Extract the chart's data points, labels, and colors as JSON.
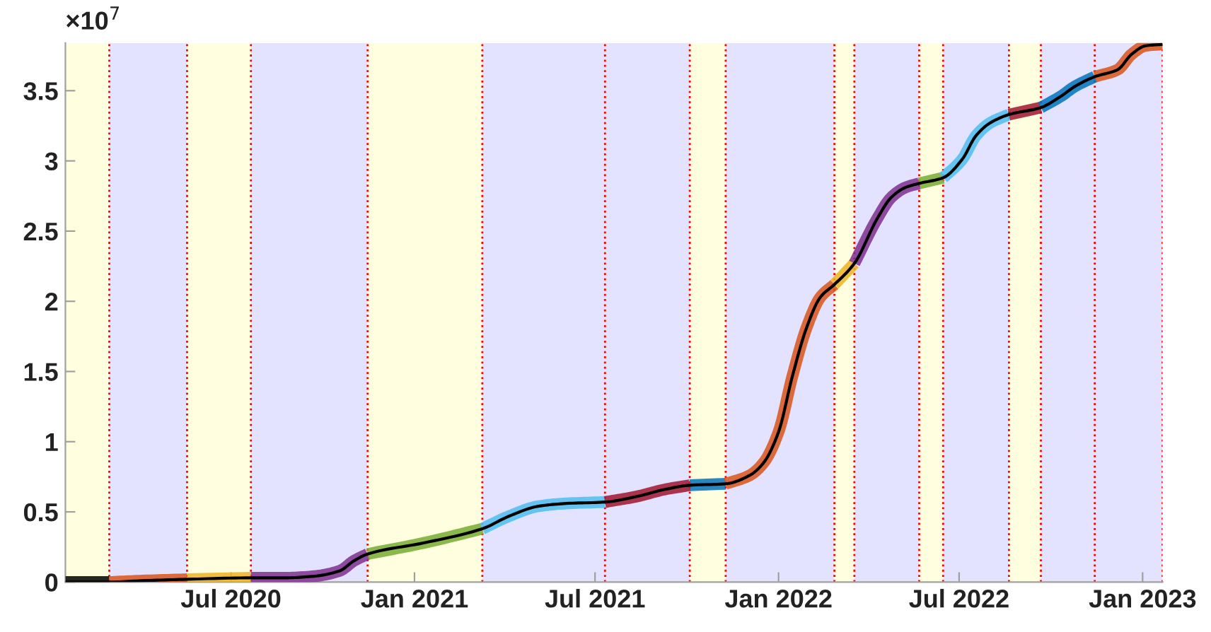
{
  "chart_data": {
    "type": "line",
    "xlim": [
      "2020-01-17",
      "2023-01-21"
    ],
    "ylim": [
      0,
      3.84
    ],
    "xticks": [
      {
        "value": "2020-07-01",
        "label": "Jul 2020"
      },
      {
        "value": "2021-01-01",
        "label": "Jan 2021"
      },
      {
        "value": "2021-07-01",
        "label": "Jul 2021"
      },
      {
        "value": "2022-01-01",
        "label": "Jan 2022"
      },
      {
        "value": "2022-07-01",
        "label": "Jul 2022"
      },
      {
        "value": "2023-01-01",
        "label": "Jan 2023"
      }
    ],
    "yticks": [
      0,
      0.5,
      1,
      1.5,
      2,
      2.5,
      3,
      3.5
    ],
    "annotations": [
      "×10$^{7}$"
    ],
    "grid": false,
    "series": [
      {
        "color": "#000000",
        "x": [
          "2020-01-17",
          "2020-03-01"
        ],
        "values": [
          0,
          0
        ]
      },
      {
        "color": "#d95319",
        "x": [
          "2020-03-01",
          "2020-04-03",
          "2020-05-18"
        ],
        "values": [
          0,
          0.01,
          0.02
        ]
      },
      {
        "color": "#edb120",
        "x": [
          "2020-05-18",
          "2020-07-21"
        ],
        "values": [
          0.02,
          0.03
        ]
      },
      {
        "color": "#7e2f8e",
        "x": [
          "2020-07-21",
          "2020-08-22",
          "2020-09-20",
          "2020-10-18",
          "2020-11-01",
          "2020-11-15"
        ],
        "values": [
          0.03,
          0.03,
          0.04,
          0.08,
          0.15,
          0.2
        ]
      },
      {
        "color": "#77ac30",
        "x": [
          "2020-11-15",
          "2021-01-11",
          "2021-03-10"
        ],
        "values": [
          0.2,
          0.28,
          0.38
        ]
      },
      {
        "color": "#4dbeee",
        "x": [
          "2021-03-10",
          "2021-04-06",
          "2021-05-05",
          "2021-06-02",
          "2021-07-11"
        ],
        "values": [
          0.38,
          0.47,
          0.54,
          0.56,
          0.57
        ]
      },
      {
        "color": "#a2142f",
        "x": [
          "2021-07-11",
          "2021-08-12",
          "2021-09-09",
          "2021-10-04"
        ],
        "values": [
          0.57,
          0.61,
          0.66,
          0.69
        ]
      },
      {
        "color": "#0072bd",
        "x": [
          "2021-10-04",
          "2021-11-09"
        ],
        "values": [
          0.69,
          0.7
        ]
      },
      {
        "color": "#d95319",
        "x": [
          "2021-11-09",
          "2021-12-03",
          "2021-12-17",
          "2022-01-01",
          "2022-01-15",
          "2022-01-29",
          "2022-02-12",
          "2022-02-26"
        ],
        "values": [
          0.7,
          0.76,
          0.85,
          1.07,
          1.47,
          1.81,
          2.03,
          2.12
        ]
      },
      {
        "color": "#edb120",
        "x": [
          "2022-02-26",
          "2022-03-18"
        ],
        "values": [
          2.12,
          2.27
        ]
      },
      {
        "color": "#7e2f8e",
        "x": [
          "2022-03-18",
          "2022-04-10",
          "2022-04-24",
          "2022-05-08",
          "2022-05-22"
        ],
        "values": [
          2.27,
          2.59,
          2.74,
          2.81,
          2.84
        ]
      },
      {
        "color": "#77ac30",
        "x": [
          "2022-05-22",
          "2022-06-15"
        ],
        "values": [
          2.84,
          2.88
        ]
      },
      {
        "color": "#4dbeee",
        "x": [
          "2022-06-15",
          "2022-07-04",
          "2022-07-18",
          "2022-08-01",
          "2022-08-20"
        ],
        "values": [
          2.88,
          3.01,
          3.18,
          3.27,
          3.33
        ]
      },
      {
        "color": "#a2142f",
        "x": [
          "2022-08-20",
          "2022-09-21"
        ],
        "values": [
          3.33,
          3.38
        ]
      },
      {
        "color": "#0072bd",
        "x": [
          "2022-09-21",
          "2022-10-11",
          "2022-10-25",
          "2022-11-14"
        ],
        "values": [
          3.38,
          3.46,
          3.53,
          3.6
        ]
      },
      {
        "color": "#d95319",
        "x": [
          "2022-11-14",
          "2022-12-07",
          "2022-12-21",
          "2023-01-04",
          "2023-01-21"
        ],
        "values": [
          3.6,
          3.65,
          3.76,
          3.82,
          3.83
        ]
      },
      {
        "color": "#000000",
        "x": [
          "2020-01-17",
          "2020-03-01",
          "2020-04-03",
          "2020-05-18",
          "2020-07-21",
          "2020-08-22",
          "2020-09-20",
          "2020-10-18",
          "2020-11-01",
          "2020-11-15",
          "2021-01-11",
          "2021-03-10",
          "2021-04-06",
          "2021-05-05",
          "2021-06-02",
          "2021-07-11",
          "2021-08-12",
          "2021-09-09",
          "2021-10-04",
          "2021-11-09",
          "2021-12-03",
          "2021-12-17",
          "2022-01-01",
          "2022-01-15",
          "2022-01-29",
          "2022-02-12",
          "2022-02-26",
          "2022-03-18",
          "2022-04-10",
          "2022-04-24",
          "2022-05-08",
          "2022-05-22",
          "2022-06-15",
          "2022-07-04",
          "2022-07-18",
          "2022-08-01",
          "2022-08-20",
          "2022-09-21",
          "2022-10-11",
          "2022-10-25",
          "2022-11-14",
          "2022-12-07",
          "2022-12-21",
          "2023-01-04",
          "2023-01-21"
        ],
        "values": [
          0,
          0,
          0.01,
          0.02,
          0.03,
          0.03,
          0.04,
          0.08,
          0.15,
          0.2,
          0.28,
          0.38,
          0.47,
          0.54,
          0.56,
          0.57,
          0.61,
          0.66,
          0.69,
          0.7,
          0.76,
          0.85,
          1.07,
          1.47,
          1.81,
          2.03,
          2.12,
          2.27,
          2.59,
          2.74,
          2.81,
          2.84,
          2.88,
          3.01,
          3.18,
          3.27,
          3.33,
          3.38,
          3.46,
          3.53,
          3.6,
          3.65,
          3.76,
          3.82,
          3.83
        ]
      }
    ],
    "bands": [
      {
        "axis": "x",
        "from": "2020-01-17",
        "to": "2020-03-01",
        "color": "#ffffe0"
      },
      {
        "axis": "x",
        "from": "2020-03-01",
        "to": "2020-05-18",
        "color": "#e3e3ff"
      },
      {
        "axis": "x",
        "from": "2020-05-18",
        "to": "2020-07-21",
        "color": "#ffffe0"
      },
      {
        "axis": "x",
        "from": "2020-07-21",
        "to": "2020-11-15",
        "color": "#e3e3ff"
      },
      {
        "axis": "x",
        "from": "2020-11-15",
        "to": "2021-03-10",
        "color": "#ffffe0"
      },
      {
        "axis": "x",
        "from": "2021-03-10",
        "to": "2021-10-04",
        "color": "#e3e3ff"
      },
      {
        "axis": "x",
        "from": "2021-10-04",
        "to": "2021-11-09",
        "color": "#ffffe0"
      },
      {
        "axis": "x",
        "from": "2021-11-09",
        "to": "2022-02-26",
        "color": "#e3e3ff"
      },
      {
        "axis": "x",
        "from": "2022-02-26",
        "to": "2022-03-18",
        "color": "#ffffe0"
      },
      {
        "axis": "x",
        "from": "2022-03-18",
        "to": "2022-05-22",
        "color": "#e3e3ff"
      },
      {
        "axis": "x",
        "from": "2022-05-22",
        "to": "2022-06-15",
        "color": "#ffffe0"
      },
      {
        "axis": "x",
        "from": "2022-06-15",
        "to": "2022-08-20",
        "color": "#e3e3ff"
      },
      {
        "axis": "x",
        "from": "2022-08-20",
        "to": "2022-09-21",
        "color": "#ffffe0"
      },
      {
        "axis": "x",
        "from": "2022-09-21",
        "to": "2023-01-21",
        "color": "#e3e3ff"
      }
    ],
    "ref_lines": [
      {
        "axis": "x",
        "value": "2020-03-01",
        "color": "#ff0000",
        "line_style": "dotted"
      },
      {
        "axis": "x",
        "value": "2020-05-18",
        "color": "#ff0000",
        "line_style": "dotted"
      },
      {
        "axis": "x",
        "value": "2020-07-21",
        "color": "#ff0000",
        "line_style": "dotted"
      },
      {
        "axis": "x",
        "value": "2020-11-15",
        "color": "#ff0000",
        "line_style": "dotted"
      },
      {
        "axis": "x",
        "value": "2021-03-10",
        "color": "#ff0000",
        "line_style": "dotted"
      },
      {
        "axis": "x",
        "value": "2021-07-11",
        "color": "#ff0000",
        "line_style": "dotted"
      },
      {
        "axis": "x",
        "value": "2021-10-04",
        "color": "#ff0000",
        "line_style": "dotted"
      },
      {
        "axis": "x",
        "value": "2021-11-09",
        "color": "#ff0000",
        "line_style": "dotted"
      },
      {
        "axis": "x",
        "value": "2022-02-26",
        "color": "#ff0000",
        "line_style": "dotted"
      },
      {
        "axis": "x",
        "value": "2022-03-18",
        "color": "#ff0000",
        "line_style": "dotted"
      },
      {
        "axis": "x",
        "value": "2022-05-22",
        "color": "#ff0000",
        "line_style": "dotted"
      },
      {
        "axis": "x",
        "value": "2022-06-15",
        "color": "#ff0000",
        "line_style": "dotted"
      },
      {
        "axis": "x",
        "value": "2022-08-20",
        "color": "#ff0000",
        "line_style": "dotted"
      },
      {
        "axis": "x",
        "value": "2022-09-21",
        "color": "#ff0000",
        "line_style": "dotted"
      },
      {
        "axis": "x",
        "value": "2022-11-14",
        "color": "#ff0000",
        "line_style": "dotted"
      },
      {
        "axis": "x",
        "value": "2023-01-21",
        "color": "#ff0000",
        "line_style": "dotted"
      }
    ]
  }
}
